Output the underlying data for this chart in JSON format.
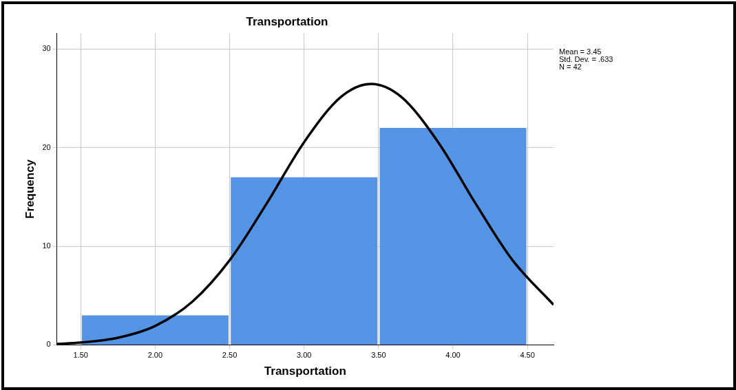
{
  "chart_data": {
    "type": "histogram",
    "title": "Transportation",
    "xlabel": "Transportation",
    "ylabel": "Frequency",
    "bins": [
      1.5,
      2.5,
      3.5,
      4.5
    ],
    "values": [
      3,
      17,
      22
    ],
    "color": "#5594e4",
    "series": [
      {
        "type": "line",
        "color": "#000000",
        "x": [
          1.34,
          1.5,
          1.75,
          2.0,
          2.25,
          2.5,
          2.75,
          3.0,
          3.25,
          3.45,
          3.65,
          3.9,
          4.15,
          4.4,
          4.675
        ],
        "values": [
          0.1,
          0.23,
          0.72,
          1.92,
          4.39,
          8.58,
          14.37,
          20.56,
          25.18,
          26.47,
          25.18,
          20.56,
          14.37,
          8.58,
          4.07
        ]
      }
    ],
    "xlim": [
      1.34,
      4.675
    ],
    "ylim": [
      0,
      31.6
    ],
    "xticks": [
      {
        "value": 1.5,
        "label": "1.50"
      },
      {
        "value": 2,
        "label": "2.00"
      },
      {
        "value": 2.5,
        "label": "2.50"
      },
      {
        "value": 3,
        "label": "3.00"
      },
      {
        "value": 3.5,
        "label": "3.50"
      },
      {
        "value": 4,
        "label": "4.00"
      },
      {
        "value": 4.5,
        "label": "4.50"
      }
    ],
    "yticks": [
      0,
      10,
      20,
      30
    ],
    "grid": true,
    "legend": false,
    "marker": "none",
    "line_style": "solid",
    "annotations": [
      "Mean = 3.45",
      "Std. Dev. = .633",
      "N = 42"
    ]
  }
}
